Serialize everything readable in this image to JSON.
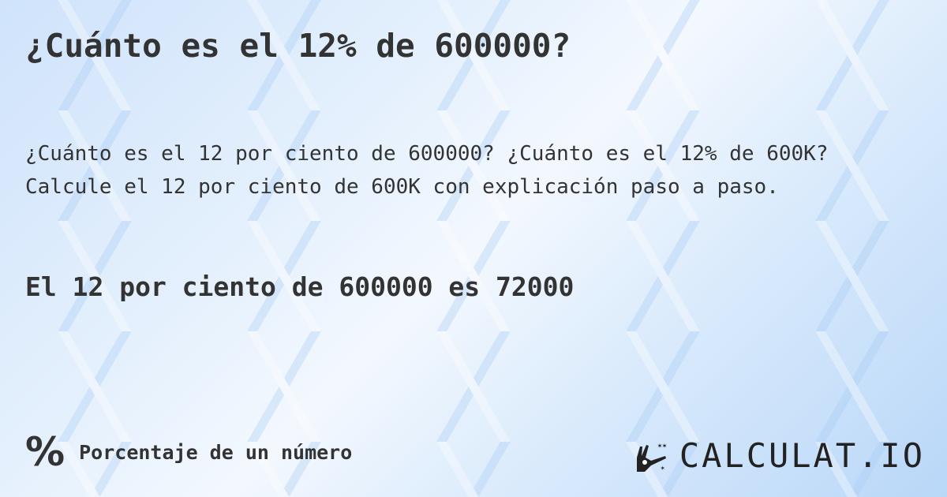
{
  "title": "¿Cuánto es el 12% de 600000?",
  "description": "¿Cuánto es el 12 por ciento de 600000? ¿Cuánto es el 12% de 600K? Calcule el 12 por ciento de 600K con explicación paso a paso.",
  "answer": "El 12 por ciento de 600000 es 72000",
  "footer": {
    "icon": "percent-icon",
    "symbol": "%",
    "category": "Porcentaje de un número"
  },
  "logo": {
    "text": "CALCULAT.IO",
    "icon": "magic-hand-icon"
  }
}
